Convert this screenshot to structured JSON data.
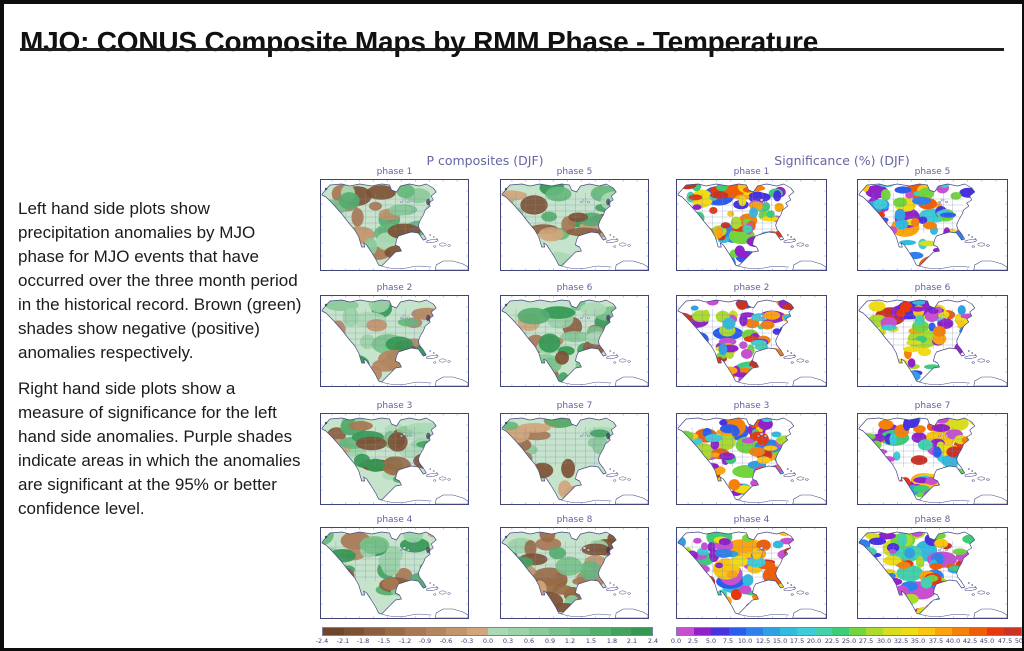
{
  "page": {
    "title": "MJO: CONUS Composite Maps by RMM Phase - Temperature",
    "description_paragraphs": [
      "Left hand side plots show precipitation anomalies by MJO phase for MJO events that have occurred over the three month period in the historical record. Brown (green) shades show negative (positive) anomalies respectively.",
      "Right hand side plots show a measure of significance for the left hand side anomalies. Purple shades indicate areas in which the anomalies are significant at the 95% or better confidence level."
    ]
  },
  "figures": {
    "left": {
      "title": "P composites (DJF)",
      "panels": [
        {
          "label": "phase 1",
          "brown_bias": 0.45
        },
        {
          "label": "phase 2",
          "brown_bias": 0.6
        },
        {
          "label": "phase 3",
          "brown_bias": 0.4
        },
        {
          "label": "phase 4",
          "brown_bias": 0.3
        },
        {
          "label": "phase 5",
          "brown_bias": 0.5
        },
        {
          "label": "phase 6",
          "brown_bias": 0.45
        },
        {
          "label": "phase 7",
          "brown_bias": 0.4
        },
        {
          "label": "phase 8",
          "brown_bias": 0.7
        }
      ],
      "colorbar": {
        "ticks": [
          "-2.4",
          "-2.1",
          "-1.8",
          "-1.5",
          "-1.2",
          "-0.9",
          "-0.6",
          "-0.3",
          "0.0",
          "0.3",
          "0.6",
          "0.9",
          "1.2",
          "1.5",
          "1.8",
          "2.1",
          "2.4"
        ],
        "colors": [
          "#6f452b",
          "#7d5134",
          "#8b5e3e",
          "#996b48",
          "#a77853",
          "#b4865f",
          "#c2956c",
          "#d0a67c",
          "#abd9b5",
          "#9cd2a8",
          "#8bca9a",
          "#79c18b",
          "#66b87c",
          "#54ae6d",
          "#43a35e",
          "#339851"
        ]
      }
    },
    "right": {
      "title": "Significance (%) (DJF)",
      "panels": [
        {
          "label": "phase 1"
        },
        {
          "label": "phase 2"
        },
        {
          "label": "phase 3"
        },
        {
          "label": "phase 4"
        },
        {
          "label": "phase 5"
        },
        {
          "label": "phase 6"
        },
        {
          "label": "phase 7"
        },
        {
          "label": "phase 8"
        }
      ],
      "colorbar": {
        "ticks": [
          "0.0",
          "2.5",
          "5.0",
          "7.5",
          "10.0",
          "12.5",
          "15.0",
          "17.5",
          "20.0",
          "22.5",
          "25.0",
          "27.5",
          "30.0",
          "32.5",
          "35.0",
          "37.5",
          "40.0",
          "42.5",
          "45.0",
          "47.5",
          "50.0"
        ],
        "colors": [
          "#c84fd0",
          "#8f23c9",
          "#4632de",
          "#2b5cec",
          "#2e80ea",
          "#2fa0e2",
          "#33bade",
          "#3ecdd8",
          "#43d2ac",
          "#3ecc78",
          "#72d43f",
          "#abdb2d",
          "#d7de1f",
          "#efdc17",
          "#fac612",
          "#fba40e",
          "#f6810a",
          "#f05d07",
          "#e8360d",
          "#c93322"
        ]
      }
    }
  }
}
